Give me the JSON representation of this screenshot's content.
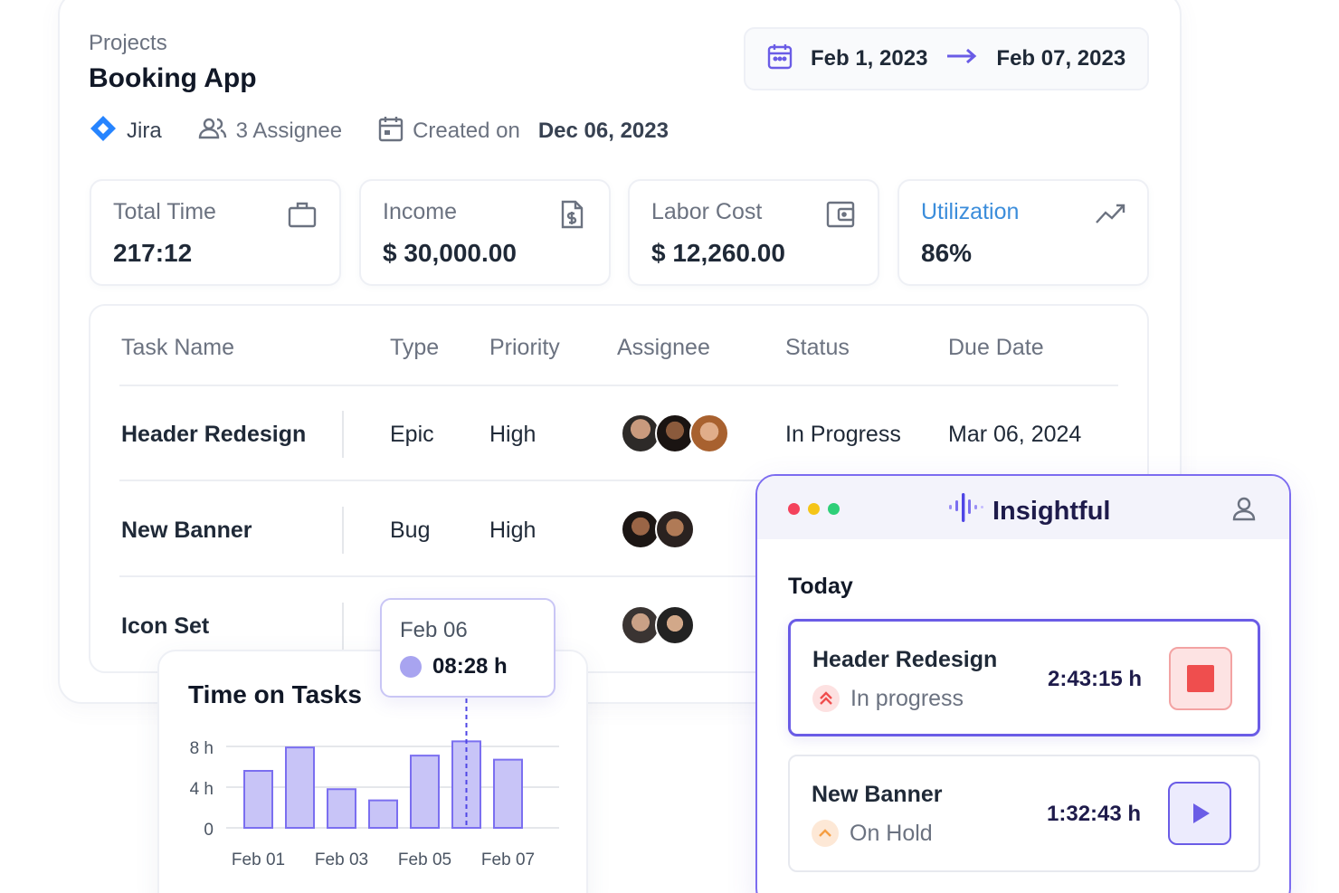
{
  "project": {
    "breadcrumb": "Projects",
    "title": "Booking App",
    "integration": "Jira",
    "assignees": "3 Assignee",
    "created_label": "Created on",
    "created_date": "Dec 06, 2023"
  },
  "date_range": {
    "start": "Feb 1, 2023",
    "end": "Feb 07, 2023",
    "icon": "calendar-icon"
  },
  "stats": [
    {
      "label": "Total Time",
      "value": "217:12",
      "icon": "briefcase-icon"
    },
    {
      "label": "Income",
      "value": "$ 30,000.00",
      "icon": "invoice-icon"
    },
    {
      "label": "Labor Cost",
      "value": "$ 12,260.00",
      "icon": "wallet-icon"
    },
    {
      "label": "Utilization",
      "value": "86%",
      "icon": "trend-icon",
      "accent": "#3b8ddb"
    }
  ],
  "tasks": {
    "columns": [
      "Task Name",
      "Type",
      "Priority",
      "Assignee",
      "Status",
      "Due Date"
    ],
    "rows": [
      {
        "name": "Header Redesign",
        "type": "Epic",
        "priority": "High",
        "avatars": 3,
        "status": "In Progress",
        "due": "Mar 06, 2024"
      },
      {
        "name": "New Banner",
        "type": "Bug",
        "priority": "High",
        "avatars": 2
      },
      {
        "name": "Icon Set",
        "avatars": 2
      }
    ]
  },
  "time_on_tasks": {
    "title": "Time on Tasks",
    "tooltip": {
      "date": "Feb 06",
      "value": "08:28 h"
    }
  },
  "chart_data": {
    "type": "bar",
    "title": "Time on Tasks",
    "categories": [
      "Feb 01",
      "Feb 02",
      "Feb 03",
      "Feb 04",
      "Feb 05",
      "Feb 06",
      "Feb 07"
    ],
    "x_tick_labels": [
      "Feb 01",
      "Feb 03",
      "Feb 05",
      "Feb 07"
    ],
    "values": [
      5.6,
      7.9,
      3.8,
      2.7,
      7.1,
      8.5,
      6.7
    ],
    "y_ticks": [
      "0",
      "4 h",
      "8 h"
    ],
    "ylim": [
      0,
      8.8
    ],
    "grid": true,
    "highlight_index": 5,
    "bar_color": "#c8c4f7",
    "bar_stroke": "#7b6ff0"
  },
  "insightful": {
    "brand": "Insightful",
    "section": "Today",
    "items": [
      {
        "name": "Header Redesign",
        "status": "In progress",
        "time": "2:43:15 h",
        "action": "stop"
      },
      {
        "name": "New Banner",
        "status": "On Hold",
        "time": "1:32:43 h",
        "action": "play"
      }
    ]
  },
  "colors": {
    "accent": "#6a5ce6",
    "jira": "#2684ff",
    "stop": "#ef4e4e"
  }
}
